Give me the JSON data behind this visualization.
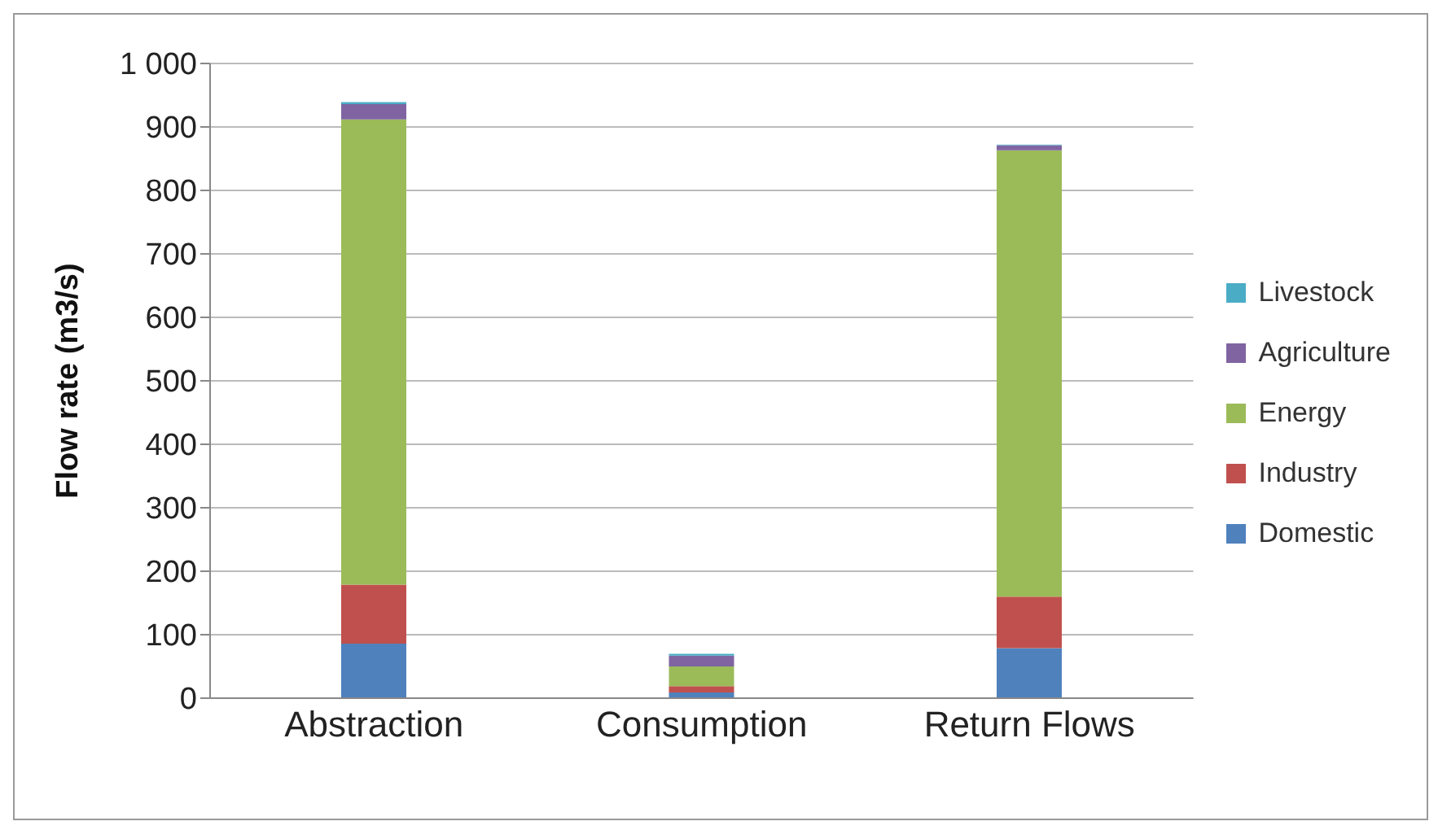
{
  "chart_data": {
    "type": "bar",
    "stacked": true,
    "ylabel": "Flow  rate  (m3/s)",
    "categories": [
      "Abstraction",
      "Consumption",
      "Return Flows"
    ],
    "series": [
      {
        "name": "Domestic",
        "color": "#4f81bd",
        "values": [
          86,
          9,
          79
        ]
      },
      {
        "name": "Industry",
        "color": "#c0504d",
        "values": [
          93,
          10,
          81
        ]
      },
      {
        "name": "Energy",
        "color": "#9bbb59",
        "values": [
          733,
          31,
          703
        ]
      },
      {
        "name": "Agriculture",
        "color": "#8064a2",
        "values": [
          24,
          17,
          8
        ]
      },
      {
        "name": "Livestock",
        "color": "#4bacc6",
        "values": [
          3,
          3,
          1
        ]
      }
    ],
    "ylim": [
      0,
      1000
    ],
    "yticks": [
      0,
      100,
      200,
      300,
      400,
      500,
      600,
      700,
      800,
      900,
      {
        "value": 1000,
        "label": "1 000"
      }
    ],
    "grid": "y",
    "legend": "right"
  }
}
